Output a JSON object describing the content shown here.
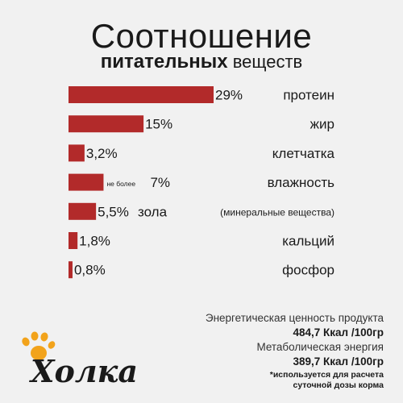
{
  "title": {
    "line1": "Соотношение",
    "line2_bold": "питательных",
    "line2_rest": "веществ"
  },
  "colors": {
    "bar": "#b22a2a",
    "background": "#f1f1f1",
    "logo_paw": "#f2a31b",
    "logo_text": "#1a1a1a"
  },
  "chart_data": {
    "type": "bar",
    "orientation": "horizontal",
    "categories": [
      "протеин",
      "жир",
      "клетчатка",
      "влажность",
      "зола",
      "кальций",
      "фосфор"
    ],
    "values": [
      29,
      15,
      3.2,
      7,
      5.5,
      1.8,
      0.8
    ],
    "value_labels": [
      "29%",
      "15%",
      "3,2%",
      "7%",
      "5,5%",
      "1,8%",
      "0,8%"
    ],
    "value_prefixes": [
      "",
      "",
      "",
      "не более",
      "",
      "",
      ""
    ],
    "category_notes": [
      "",
      "",
      "",
      "",
      "(минеральные вещества)",
      "",
      ""
    ],
    "unit": "%"
  },
  "energy": {
    "label1": "Энергетическая ценность продукта",
    "value1": "484,7 Ккал /100гр",
    "label2": "Метаболическая энергия",
    "value2": "389,7 Ккал /100гр",
    "note_line1": "*используется для расчета",
    "note_line2": "суточной дозы корма"
  },
  "logo": {
    "text": "Холка",
    "icon": "paw-icon"
  }
}
